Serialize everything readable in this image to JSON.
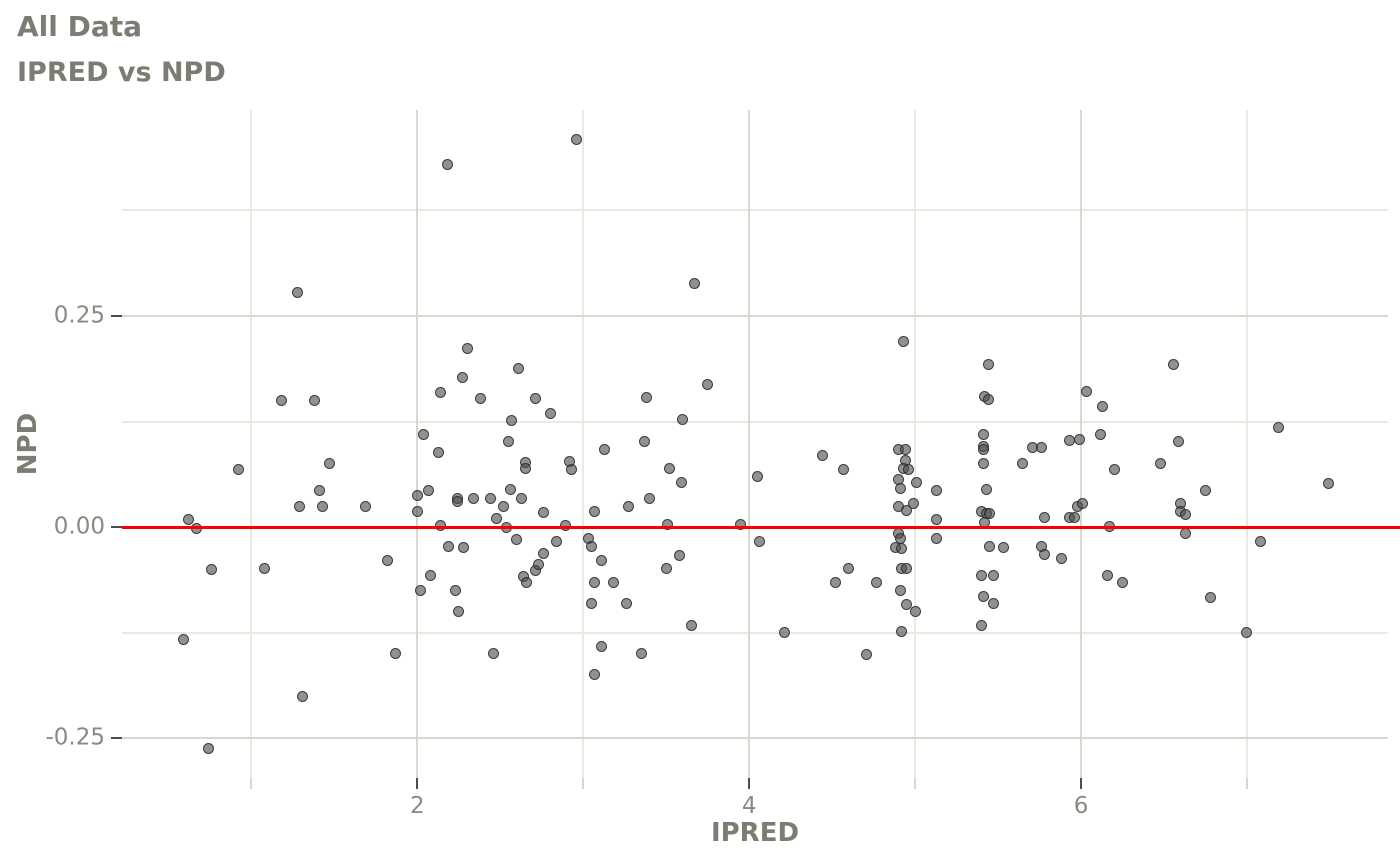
{
  "title": "All Data",
  "subtitle": "IPRED vs NPD",
  "colors": {
    "text": "#7d7c73",
    "tick_label": "#8b8a81",
    "grid_major": "#d8d8ce",
    "grid_minor": "#eaeae1",
    "point_fill": "#4d4d4d",
    "refline": "#f80000",
    "background": "#ffffff"
  },
  "chart_data": {
    "type": "scatter",
    "title": "All Data",
    "subtitle": "IPRED vs NPD",
    "xlabel": "IPRED",
    "ylabel": "NPD",
    "xlim": [
      0.22,
      7.85
    ],
    "ylim": [
      -0.297,
      0.494
    ],
    "grid": true,
    "legend_position": "none",
    "x_major_ticks": [
      2,
      4,
      6
    ],
    "x_major_tick_labels": [
      "2",
      "4",
      "6"
    ],
    "x_minor_ticks": [
      1,
      3,
      5,
      7
    ],
    "y_major_ticks": [
      0.25,
      0,
      -0.25
    ],
    "y_major_tick_labels": [
      "0.25",
      "0.00",
      "-0.25"
    ],
    "y_minor_gridlines": [
      0.375,
      0.125,
      -0.125
    ],
    "refline_y": 0,
    "refline_color": "#f80000",
    "points": [
      [
        0.62,
        0.009
      ],
      [
        0.67,
        -0.001
      ],
      [
        0.92,
        0.068
      ],
      [
        1.18,
        0.15
      ],
      [
        1.28,
        0.278
      ],
      [
        1.29,
        0.024
      ],
      [
        1.38,
        0.15
      ],
      [
        1.41,
        0.043
      ],
      [
        1.43,
        0.025
      ],
      [
        1.47,
        0.076
      ],
      [
        1.69,
        0.025
      ],
      [
        2.0,
        0.038
      ],
      [
        2.0,
        0.018
      ],
      [
        2.04,
        0.11
      ],
      [
        2.07,
        0.044
      ],
      [
        2.13,
        0.088
      ],
      [
        2.14,
        0.16
      ],
      [
        2.14,
        0.002
      ],
      [
        2.18,
        0.43
      ],
      [
        2.19,
        -0.023
      ],
      [
        2.24,
        0.034
      ],
      [
        2.24,
        0.031
      ],
      [
        2.27,
        0.177
      ],
      [
        2.28,
        -0.024
      ],
      [
        2.3,
        0.211
      ],
      [
        2.34,
        0.034
      ],
      [
        2.38,
        0.152
      ],
      [
        2.44,
        0.034
      ],
      [
        2.48,
        0.01
      ],
      [
        2.52,
        0.025
      ],
      [
        2.54,
        0.0
      ],
      [
        2.55,
        0.101
      ],
      [
        2.56,
        0.045
      ],
      [
        2.57,
        0.126
      ],
      [
        2.6,
        -0.015
      ],
      [
        2.61,
        0.188
      ],
      [
        2.63,
        0.034
      ],
      [
        2.65,
        0.077
      ],
      [
        2.65,
        0.07
      ],
      [
        2.71,
        0.152
      ],
      [
        2.76,
        0.017
      ],
      [
        2.76,
        -0.031
      ],
      [
        2.8,
        0.135
      ],
      [
        2.84,
        -0.017
      ],
      [
        2.89,
        0.002
      ],
      [
        2.92,
        0.078
      ],
      [
        2.93,
        0.068
      ],
      [
        2.96,
        0.459
      ],
      [
        3.03,
        -0.013
      ],
      [
        3.05,
        -0.023
      ],
      [
        3.07,
        0.018
      ],
      [
        3.11,
        -0.04
      ],
      [
        3.13,
        0.092
      ],
      [
        3.27,
        0.025
      ],
      [
        3.37,
        0.102
      ],
      [
        3.38,
        0.153
      ],
      [
        3.4,
        0.034
      ],
      [
        3.51,
        0.003
      ],
      [
        3.52,
        0.069
      ],
      [
        3.58,
        -0.033
      ],
      [
        3.59,
        0.053
      ],
      [
        3.6,
        0.127
      ],
      [
        3.67,
        0.288
      ],
      [
        3.75,
        0.169
      ],
      [
        3.95,
        0.003
      ],
      [
        4.05,
        0.06
      ],
      [
        4.06,
        -0.017
      ],
      [
        4.44,
        0.085
      ],
      [
        4.57,
        0.068
      ],
      [
        4.9,
        0.092
      ],
      [
        4.94,
        0.092
      ],
      [
        4.94,
        0.079
      ],
      [
        4.93,
        0.22
      ],
      [
        4.93,
        0.07
      ],
      [
        4.96,
        0.068
      ],
      [
        4.9,
        0.056
      ],
      [
        4.91,
        0.046
      ],
      [
        5.01,
        0.053
      ],
      [
        5.13,
        0.044
      ],
      [
        4.9,
        0.025
      ],
      [
        4.95,
        0.02
      ],
      [
        4.99,
        0.028
      ],
      [
        5.4,
        0.019
      ],
      [
        5.41,
        0.11
      ],
      [
        5.41,
        0.095
      ],
      [
        5.41,
        0.092
      ],
      [
        5.41,
        0.076
      ],
      [
        5.42,
        0.155
      ],
      [
        5.44,
        0.151
      ],
      [
        5.43,
        0.045
      ],
      [
        5.43,
        0.016
      ],
      [
        5.45,
        0.016
      ],
      [
        5.42,
        0.005
      ],
      [
        5.44,
        0.193
      ],
      [
        5.13,
        0.009
      ],
      [
        5.78,
        0.011
      ],
      [
        5.93,
        0.011
      ],
      [
        5.96,
        0.011
      ],
      [
        5.65,
        0.076
      ],
      [
        5.71,
        0.094
      ],
      [
        5.76,
        0.094
      ],
      [
        5.93,
        0.103
      ],
      [
        5.99,
        0.104
      ],
      [
        5.98,
        0.025
      ],
      [
        6.01,
        0.028
      ],
      [
        5.13,
        -0.013
      ],
      [
        4.9,
        -0.007
      ],
      [
        4.91,
        -0.013
      ],
      [
        4.88,
        -0.024
      ],
      [
        4.92,
        -0.025
      ],
      [
        5.45,
        -0.023
      ],
      [
        5.53,
        -0.024
      ],
      [
        5.76,
        -0.023
      ],
      [
        5.78,
        -0.032
      ],
      [
        5.88,
        -0.037
      ],
      [
        6.03,
        0.161
      ],
      [
        6.12,
        0.11
      ],
      [
        6.13,
        0.143
      ],
      [
        6.16,
        -0.057
      ],
      [
        6.17,
        0.001
      ],
      [
        6.2,
        0.068
      ],
      [
        6.25,
        -0.066
      ],
      [
        6.48,
        0.076
      ],
      [
        6.56,
        0.193
      ],
      [
        6.59,
        0.101
      ],
      [
        6.6,
        0.028
      ],
      [
        6.6,
        0.018
      ],
      [
        6.63,
        0.015
      ],
      [
        6.63,
        -0.007
      ],
      [
        6.75,
        0.044
      ],
      [
        6.78,
        -0.083
      ],
      [
        7.0,
        -0.125
      ],
      [
        7.08,
        -0.017
      ],
      [
        7.19,
        0.118
      ],
      [
        7.49,
        0.052
      ],
      [
        0.59,
        -0.133
      ],
      [
        0.74,
        -0.262
      ],
      [
        0.76,
        -0.05
      ],
      [
        1.08,
        -0.049
      ],
      [
        1.31,
        -0.2
      ],
      [
        1.82,
        -0.04
      ],
      [
        1.87,
        -0.15
      ],
      [
        2.02,
        -0.075
      ],
      [
        2.08,
        -0.057
      ],
      [
        2.23,
        -0.075
      ],
      [
        2.25,
        -0.1
      ],
      [
        2.46,
        -0.149
      ],
      [
        2.64,
        -0.058
      ],
      [
        2.66,
        -0.066
      ],
      [
        2.71,
        -0.051
      ],
      [
        2.73,
        -0.044
      ],
      [
        3.05,
        -0.09
      ],
      [
        3.07,
        -0.066
      ],
      [
        3.07,
        -0.175
      ],
      [
        3.11,
        -0.141
      ],
      [
        3.18,
        -0.066
      ],
      [
        3.26,
        -0.09
      ],
      [
        3.35,
        -0.149
      ],
      [
        3.5,
        -0.049
      ],
      [
        3.65,
        -0.116
      ],
      [
        4.21,
        -0.125
      ],
      [
        4.52,
        -0.066
      ],
      [
        4.6,
        -0.049
      ],
      [
        4.71,
        -0.151
      ],
      [
        4.77,
        -0.065
      ],
      [
        4.91,
        -0.075
      ],
      [
        4.92,
        -0.049
      ],
      [
        4.95,
        -0.049
      ],
      [
        4.92,
        -0.124
      ],
      [
        4.95,
        -0.091
      ],
      [
        5.0,
        -0.1
      ],
      [
        5.4,
        -0.057
      ],
      [
        5.47,
        -0.057
      ],
      [
        5.4,
        -0.116
      ],
      [
        5.41,
        -0.082
      ],
      [
        5.47,
        -0.09
      ]
    ]
  }
}
